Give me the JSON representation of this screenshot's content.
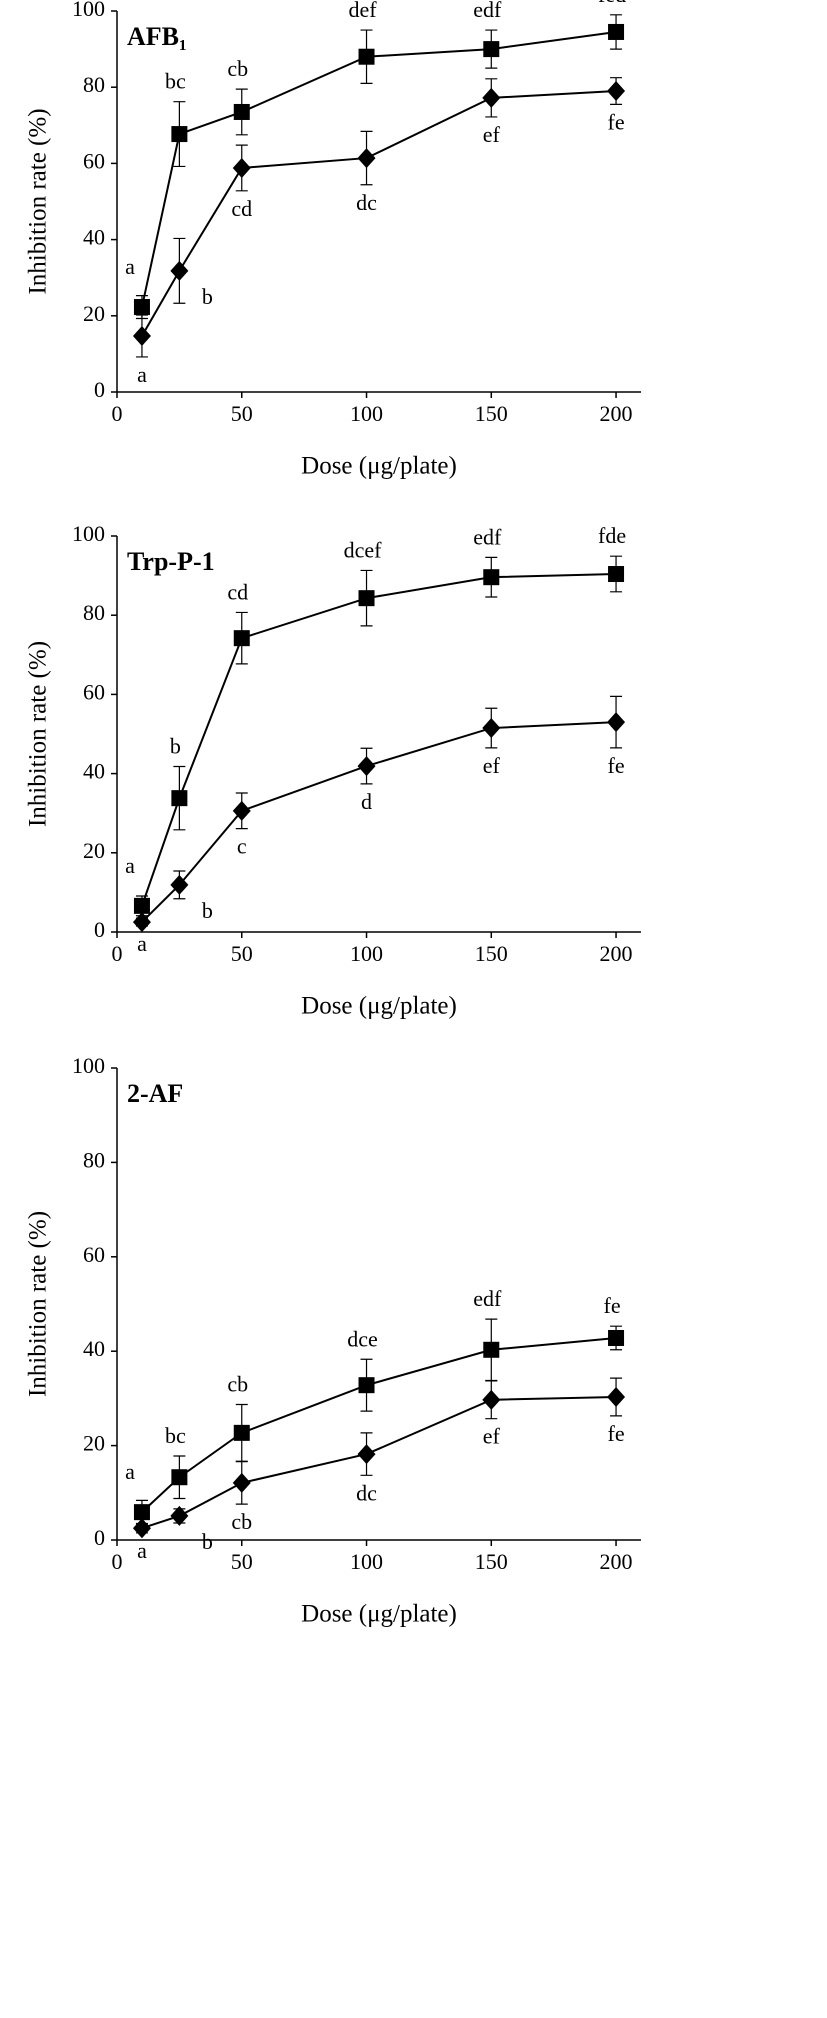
{
  "chart_data": [
    {
      "type": "line",
      "title": "AFB₁",
      "x_label": "Dose (μg/plate)",
      "y_label": "Inhibition rate (%)",
      "x": [
        10,
        25,
        50,
        100,
        150,
        200
      ],
      "xlim": [
        0,
        210
      ],
      "xticks": [
        0,
        50,
        100,
        150,
        200
      ],
      "ylim": [
        0,
        100
      ],
      "yticks": [
        0,
        20,
        40,
        60,
        80,
        100
      ],
      "color": "#000000",
      "series": [
        {
          "marker": "square",
          "color": "#000000",
          "values": [
            22.3,
            67.7,
            73.5,
            88,
            90,
            94.5
          ],
          "errors": [
            3,
            8.5,
            6,
            7,
            5,
            4.5
          ],
          "point_labels": [
            "a",
            "bc",
            "cb",
            "def",
            "edf",
            "fed"
          ]
        },
        {
          "marker": "diamond",
          "color": "#000000",
          "values": [
            14.7,
            31.8,
            58.8,
            61.4,
            77.2,
            79
          ],
          "errors": [
            5.5,
            8.5,
            6,
            7,
            5,
            3.5
          ],
          "point_labels": [
            "a",
            "b",
            "cd",
            "dc",
            "ef",
            "fe"
          ]
        }
      ]
    },
    {
      "type": "line",
      "title": "Trp-P-1",
      "x_label": "Dose (μg/plate)",
      "y_label": "Inhibition rate (%)",
      "x": [
        10,
        25,
        50,
        100,
        150,
        200
      ],
      "xlim": [
        0,
        210
      ],
      "xticks": [
        0,
        50,
        100,
        150,
        200
      ],
      "ylim": [
        0,
        100
      ],
      "yticks": [
        0,
        20,
        40,
        60,
        80,
        100
      ],
      "color": "#000000",
      "series": [
        {
          "marker": "square",
          "color": "#000000",
          "values": [
            6.6,
            33.8,
            74.2,
            84.3,
            89.6,
            90.4
          ],
          "errors": [
            2.5,
            8,
            6.5,
            7,
            5,
            4.5
          ],
          "point_labels": [
            "a",
            "b",
            "cd",
            "dcef",
            "edf",
            "fde"
          ]
        },
        {
          "marker": "diamond",
          "color": "#000000",
          "values": [
            2.5,
            11.9,
            30.6,
            41.9,
            51.5,
            53
          ],
          "errors": [
            1,
            3.5,
            4.5,
            4.5,
            5,
            6.5
          ],
          "point_labels": [
            "a",
            "b",
            "c",
            "d",
            "ef",
            "fe"
          ]
        }
      ]
    },
    {
      "type": "line",
      "title": "2-AF",
      "x_label": "Dose (μg/plate)",
      "y_label": "Inhibition rate (%)",
      "x": [
        10,
        25,
        50,
        100,
        150,
        200
      ],
      "xlim": [
        0,
        210
      ],
      "xticks": [
        0,
        50,
        100,
        150,
        200
      ],
      "ylim": [
        0,
        100
      ],
      "yticks": [
        0,
        20,
        40,
        60,
        80,
        100
      ],
      "color": "#000000",
      "series": [
        {
          "marker": "square",
          "color": "#000000",
          "values": [
            5.9,
            13.3,
            22.7,
            32.8,
            40.3,
            42.8
          ],
          "errors": [
            2.5,
            4.5,
            6,
            5.5,
            6.5,
            2.5
          ],
          "point_labels": [
            "a",
            "bc",
            "cb",
            "dce",
            "edf",
            "fe"
          ]
        },
        {
          "marker": "diamond",
          "color": "#000000",
          "values": [
            2.5,
            5.1,
            12.1,
            18.2,
            29.7,
            30.3
          ],
          "errors": [
            1,
            1.5,
            4.5,
            4.5,
            4,
            4
          ],
          "point_labels": [
            "a",
            "b",
            "cb",
            "dc",
            "ef",
            "fe"
          ]
        }
      ]
    }
  ]
}
